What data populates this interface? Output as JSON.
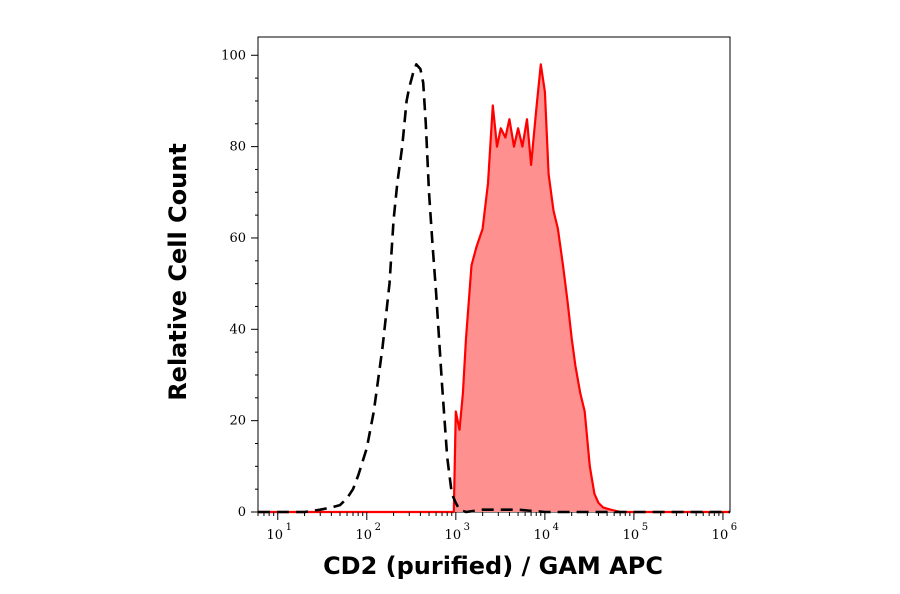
{
  "chart_data": {
    "type": "area",
    "xlabel": "CD2 (purified) / GAM APC",
    "ylabel": "Relative Cell Count",
    "x_scale": "log",
    "x_range": [
      6,
      1200000
    ],
    "y_range": [
      0,
      104
    ],
    "y_ticks": [
      {
        "value": 0,
        "label": "0"
      },
      {
        "value": 20,
        "label": "20"
      },
      {
        "value": 40,
        "label": "40"
      },
      {
        "value": 60,
        "label": "60"
      },
      {
        "value": 80,
        "label": "80"
      },
      {
        "value": 100,
        "label": "100"
      }
    ],
    "x_ticks": [
      {
        "value": 10,
        "base": "10",
        "exp": "1"
      },
      {
        "value": 100,
        "base": "10",
        "exp": "2"
      },
      {
        "value": 1000,
        "base": "10",
        "exp": "3"
      },
      {
        "value": 10000,
        "base": "10",
        "exp": "4"
      },
      {
        "value": 100000,
        "base": "10",
        "exp": "5"
      },
      {
        "value": 1000000,
        "base": "10",
        "exp": "6"
      }
    ],
    "series": [
      {
        "style": "dashed",
        "color": "#000000",
        "x": [
          6,
          20,
          30,
          40,
          50,
          60,
          70,
          80,
          100,
          120,
          150,
          180,
          200,
          220,
          250,
          280,
          300,
          330,
          360,
          400,
          430,
          460,
          500,
          550,
          600,
          700,
          800,
          900,
          1000,
          1100,
          1300,
          2000,
          5000,
          10000,
          100000,
          1200000
        ],
        "y": [
          0,
          0,
          0.5,
          1,
          1.5,
          3,
          5,
          8,
          14,
          22,
          36,
          50,
          64,
          72,
          80,
          90,
          93,
          96,
          98,
          97,
          94,
          85,
          70,
          58,
          48,
          28,
          12,
          4,
          2,
          0.5,
          0,
          0.5,
          0.5,
          0,
          0,
          0
        ]
      },
      {
        "style": "filled",
        "color": "#ff0000",
        "fill": "#ff9090",
        "x": [
          6,
          950,
          1000,
          1100,
          1200,
          1300,
          1500,
          1700,
          2000,
          2300,
          2600,
          2900,
          3200,
          3600,
          4000,
          4500,
          5000,
          5600,
          6300,
          7000,
          8000,
          9000,
          10000,
          11000,
          12500,
          14000,
          16000,
          18000,
          20000,
          22000,
          25000,
          28000,
          32000,
          36000,
          40000,
          45000,
          55000,
          70000,
          1200000
        ],
        "y": [
          0,
          0,
          22,
          18,
          26,
          38,
          54,
          58,
          62,
          72,
          89,
          80,
          84,
          82,
          86,
          80,
          84,
          80,
          86,
          76,
          88,
          98,
          92,
          74,
          66,
          62,
          54,
          46,
          38,
          32,
          26,
          22,
          10,
          4,
          2,
          1,
          0.5,
          0,
          0
        ]
      }
    ]
  }
}
